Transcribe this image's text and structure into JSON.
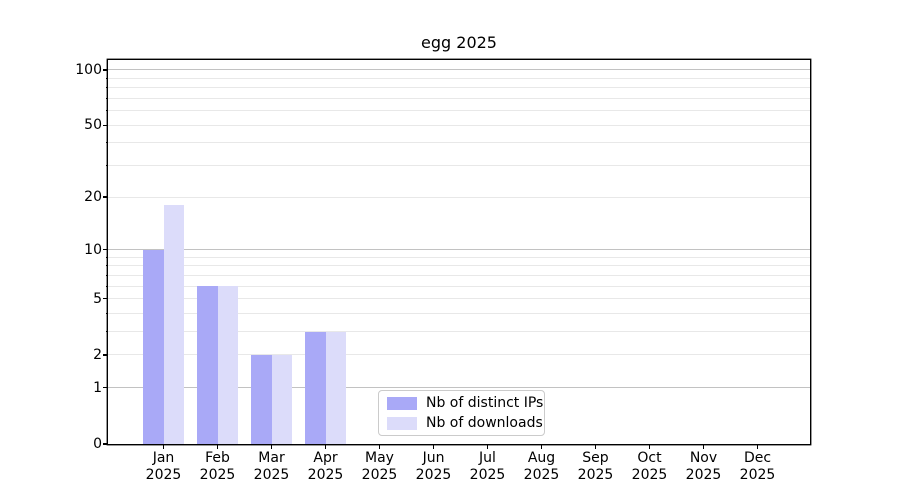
{
  "chart_data": {
    "type": "bar",
    "title": "egg 2025",
    "categories": [
      "Jan",
      "Feb",
      "Mar",
      "Apr",
      "May",
      "Jun",
      "Jul",
      "Aug",
      "Sep",
      "Oct",
      "Nov",
      "Dec"
    ],
    "category_year": "2025",
    "series": [
      {
        "name": "Nb of distinct IPs",
        "color": "#a9a9f7",
        "values": [
          10,
          6,
          2,
          3,
          0,
          0,
          0,
          0,
          0,
          0,
          0,
          0
        ]
      },
      {
        "name": "Nb of downloads",
        "color": "#dcdcfa",
        "values": [
          18,
          6,
          2,
          3,
          0,
          0,
          0,
          0,
          0,
          0,
          0,
          0
        ]
      }
    ],
    "xlabel": "",
    "ylabel": "",
    "yscale": "log10(1+y)",
    "ylim": [
      0,
      113
    ],
    "y_tick_labels": [
      "0",
      "1",
      "2",
      "5",
      "10",
      "20",
      "50",
      "100"
    ],
    "y_tick_values": [
      0,
      1,
      2,
      5,
      10,
      20,
      50,
      100
    ],
    "y_major_gridlines": [
      1,
      10,
      100
    ],
    "y_minor_gridlines": [
      2,
      3,
      4,
      5,
      6,
      7,
      8,
      9,
      20,
      30,
      40,
      50,
      60,
      70,
      80,
      90
    ],
    "y_minor_tick_values": [
      3,
      4,
      6,
      7,
      8,
      9,
      30,
      40,
      60,
      70,
      80,
      90
    ],
    "grid": true,
    "legend_position": "lower-center"
  }
}
